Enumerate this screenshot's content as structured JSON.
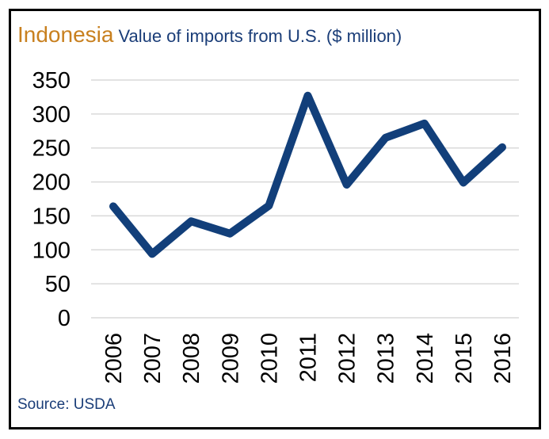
{
  "title": {
    "country": "Indonesia",
    "subtitle": "Value of imports from U.S. ($ million)"
  },
  "source": "Source: USDA",
  "colors": {
    "line": "#123f7a",
    "title_country": "#c8801f",
    "title_subtitle": "#1a3d78",
    "gridline": "#d9d9d9"
  },
  "chart_data": {
    "type": "line",
    "title": "Indonesia Value of imports from U.S. ($ million)",
    "xlabel": "",
    "ylabel": "",
    "categories": [
      "2006",
      "2007",
      "2008",
      "2009",
      "2010",
      "2011",
      "2012",
      "2013",
      "2014",
      "2015",
      "2016"
    ],
    "series": [
      {
        "values": [
          164,
          94,
          142,
          124,
          165,
          327,
          196,
          265,
          286,
          199,
          251
        ]
      }
    ],
    "ylim": [
      0,
      350
    ],
    "yticks": [
      0,
      50,
      100,
      150,
      200,
      250,
      300,
      350
    ],
    "grid": true,
    "legend": "none"
  }
}
